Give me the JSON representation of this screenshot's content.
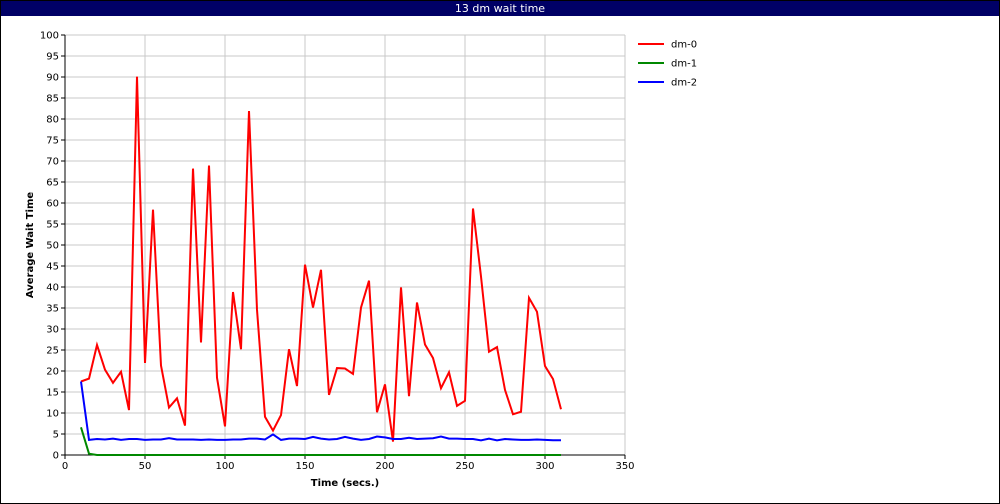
{
  "chart_data": {
    "type": "line",
    "title": "13 dm wait time",
    "xlabel": "Time (secs.)",
    "ylabel": "Average Wait Time",
    "xlim": [
      0,
      350
    ],
    "ylim": [
      0,
      100
    ],
    "x_ticks": [
      0,
      50,
      100,
      150,
      200,
      250,
      300,
      350
    ],
    "y_ticks": [
      0,
      5,
      10,
      15,
      20,
      25,
      30,
      35,
      40,
      45,
      50,
      55,
      60,
      65,
      70,
      75,
      80,
      85,
      90,
      95,
      100
    ],
    "grid": true,
    "legend_position": "right",
    "series": [
      {
        "name": "dm-0",
        "color": "#ff0000",
        "x": [
          10,
          15,
          20,
          25,
          30,
          35,
          40,
          45,
          50,
          55,
          60,
          65,
          70,
          75,
          80,
          85,
          90,
          95,
          100,
          105,
          110,
          115,
          120,
          125,
          130,
          135,
          140,
          145,
          150,
          155,
          160,
          165,
          170,
          175,
          180,
          185,
          190,
          195,
          200,
          205,
          210,
          215,
          220,
          225,
          230,
          235,
          240,
          245,
          250,
          255,
          260,
          265,
          270,
          275,
          280,
          285,
          290,
          295,
          300,
          305,
          310
        ],
        "y": [
          17.5,
          18.2,
          26.2,
          20.3,
          17.2,
          19.8,
          10.7,
          90.1,
          21.9,
          58.4,
          21.3,
          11.3,
          13.5,
          7.0,
          68.2,
          26.8,
          68.9,
          18.4,
          6.8,
          38.8,
          25.2,
          81.9,
          34.6,
          9.1,
          5.8,
          9.5,
          25.2,
          16.4,
          45.3,
          35.1,
          44.1,
          14.3,
          20.7,
          20.6,
          19.3,
          35.1,
          41.5,
          10.2,
          16.8,
          3.2,
          39.9,
          14.0,
          36.3,
          26.3,
          23.1,
          15.9,
          19.7,
          11.7,
          12.9,
          58.7,
          42.5,
          24.6,
          25.7,
          15.5,
          9.7,
          10.3,
          37.4,
          34.1,
          21.2,
          18.1,
          10.9
        ]
      },
      {
        "name": "dm-1",
        "color": "#008800",
        "x": [
          10,
          15,
          20,
          310
        ],
        "y": [
          6.6,
          0.3,
          0.0,
          0.0
        ]
      },
      {
        "name": "dm-2",
        "color": "#0000ff",
        "x": [
          10,
          15,
          20,
          25,
          30,
          35,
          40,
          45,
          50,
          55,
          60,
          65,
          70,
          75,
          80,
          85,
          90,
          95,
          100,
          105,
          110,
          115,
          120,
          125,
          130,
          135,
          140,
          145,
          150,
          155,
          160,
          165,
          170,
          175,
          180,
          185,
          190,
          195,
          200,
          205,
          210,
          215,
          220,
          225,
          230,
          235,
          240,
          245,
          250,
          255,
          260,
          265,
          270,
          275,
          280,
          285,
          290,
          295,
          300,
          305,
          310
        ],
        "y": [
          17.5,
          3.6,
          3.8,
          3.7,
          3.9,
          3.6,
          3.8,
          3.8,
          3.6,
          3.7,
          3.7,
          4.0,
          3.7,
          3.7,
          3.7,
          3.6,
          3.7,
          3.6,
          3.6,
          3.7,
          3.7,
          3.9,
          3.9,
          3.7,
          4.9,
          3.6,
          3.9,
          3.9,
          3.8,
          4.3,
          3.9,
          3.7,
          3.8,
          4.3,
          3.9,
          3.6,
          3.8,
          4.4,
          4.2,
          3.8,
          3.8,
          4.1,
          3.8,
          3.9,
          4.0,
          4.4,
          3.9,
          3.9,
          3.8,
          3.8,
          3.5,
          3.9,
          3.5,
          3.8,
          3.7,
          3.6,
          3.6,
          3.7,
          3.6,
          3.5,
          3.5
        ]
      }
    ]
  }
}
